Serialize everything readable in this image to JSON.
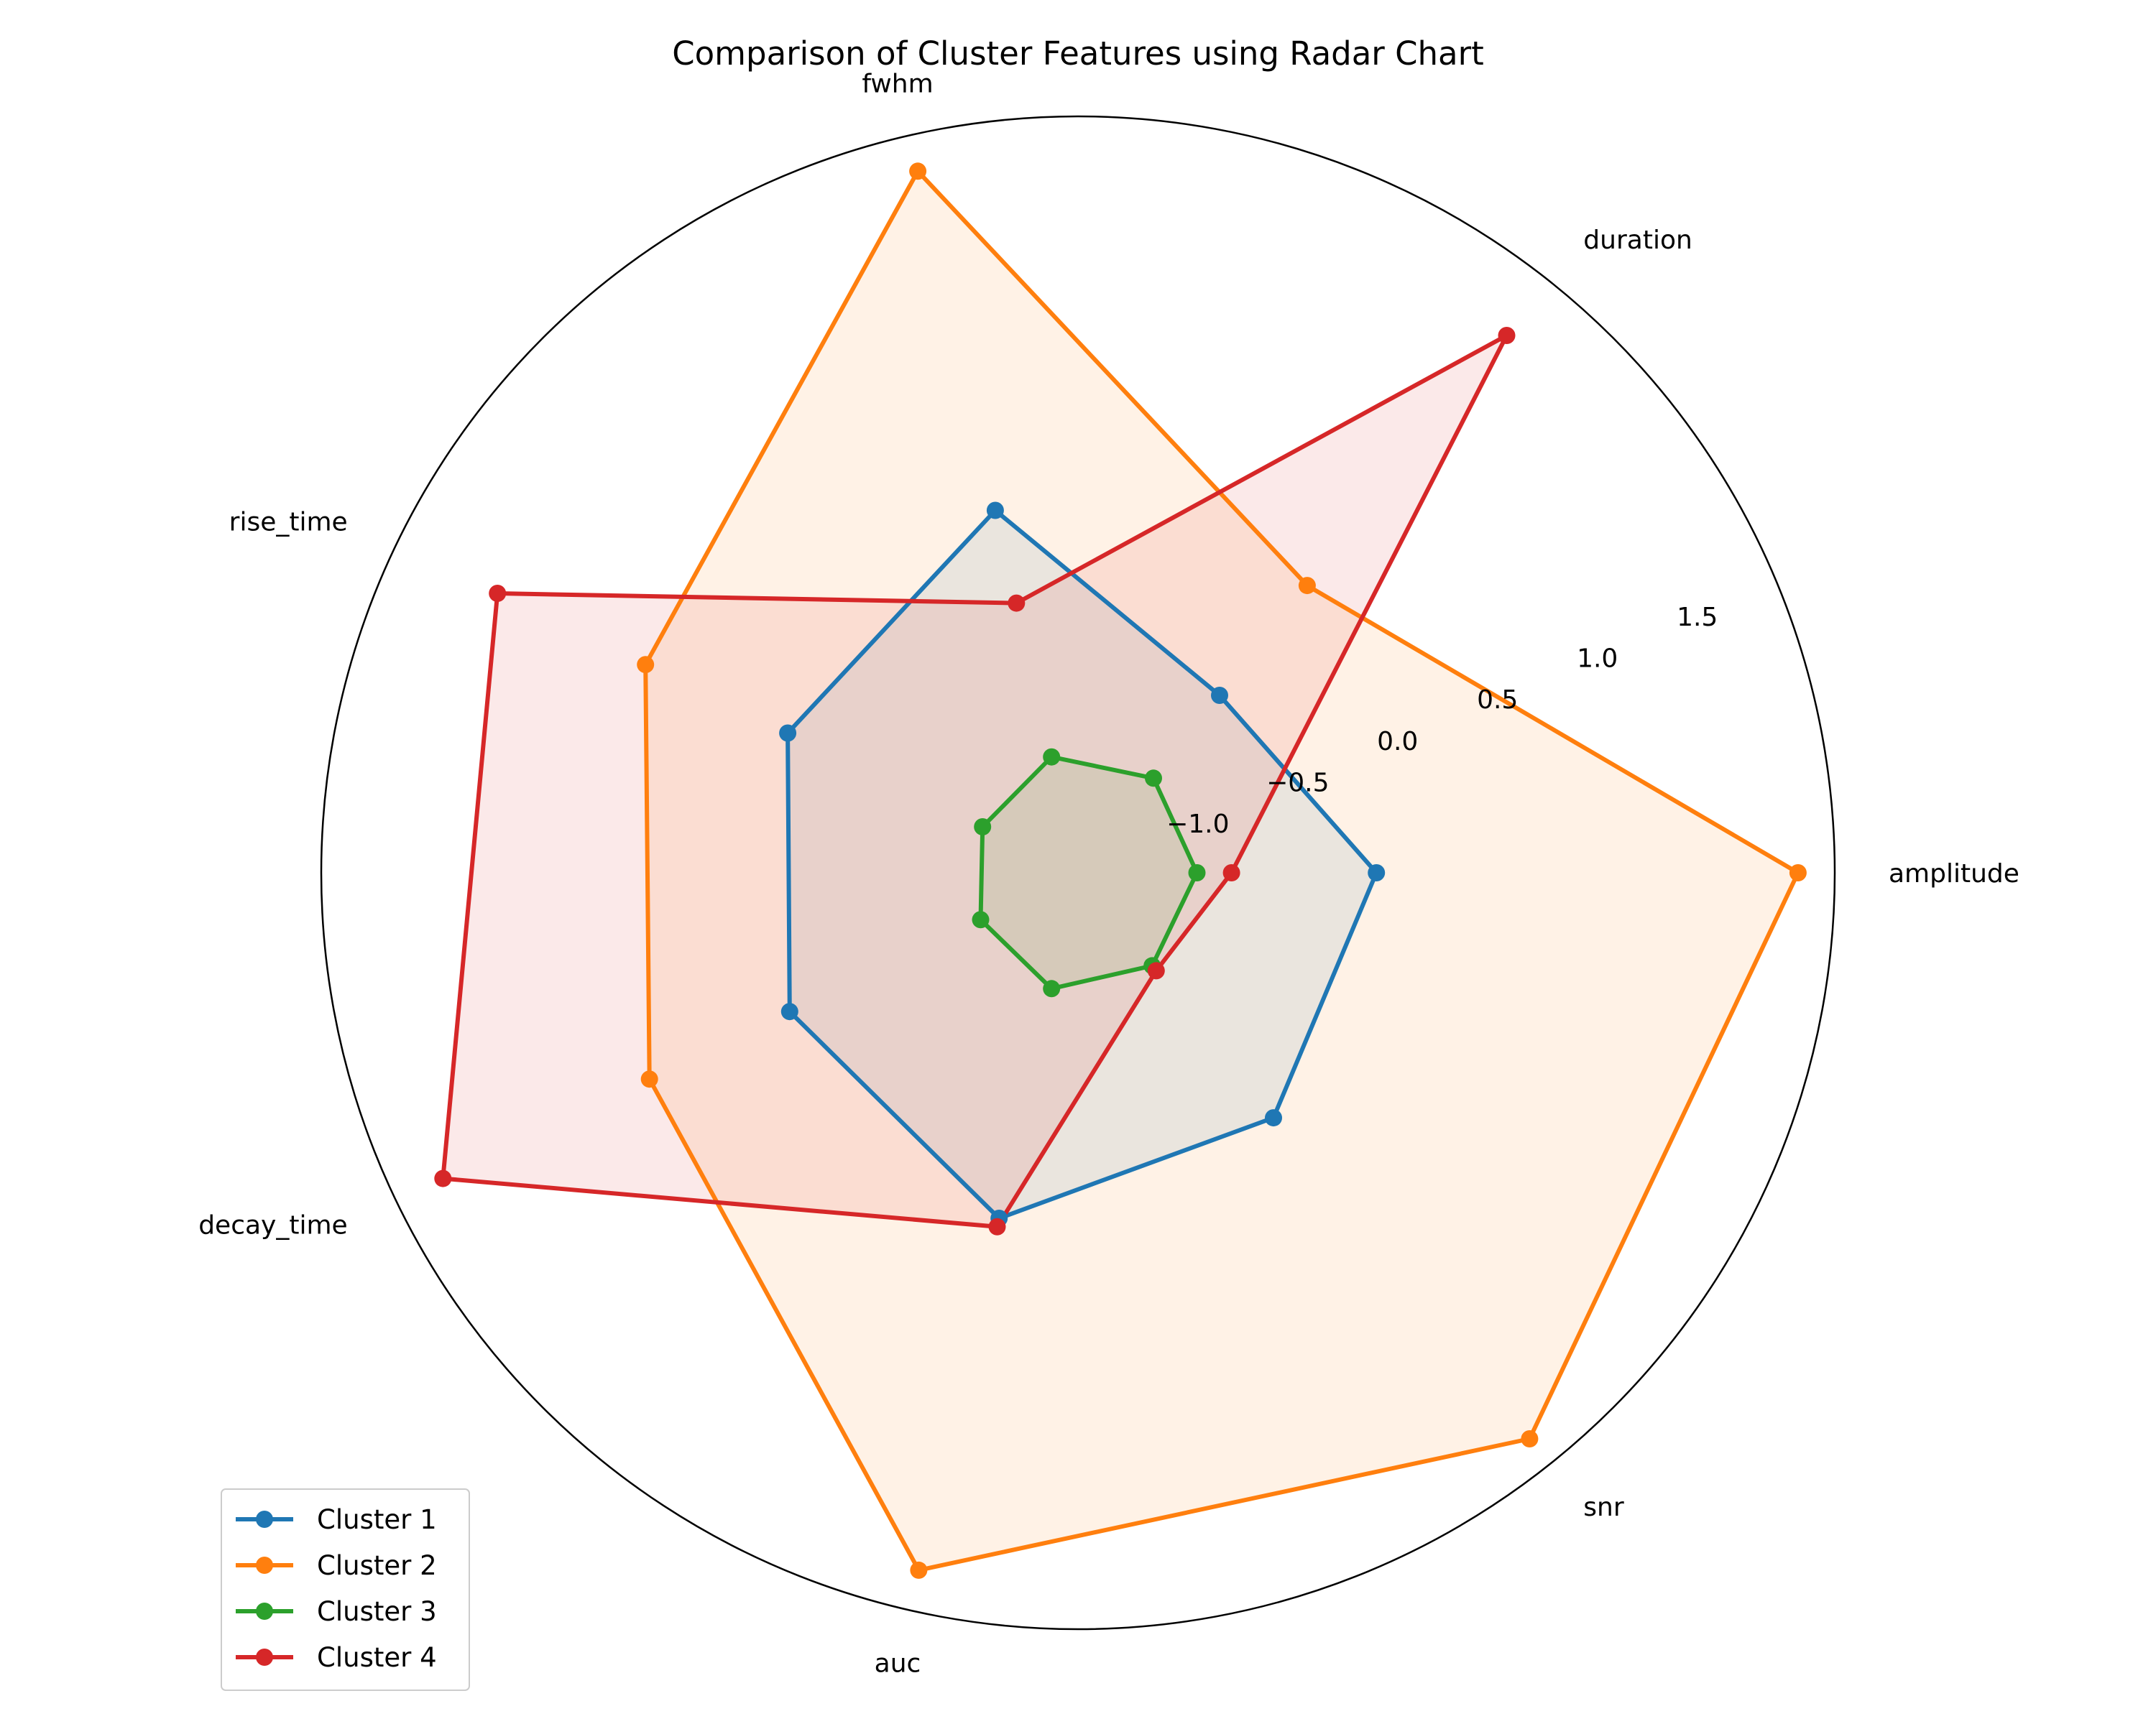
{
  "chart_data": {
    "type": "radar",
    "title": "Comparison of Cluster Features using Radar Chart",
    "categories": [
      "amplitude",
      "duration",
      "fwhm",
      "rise_time",
      "decay_time",
      "auc",
      "snr"
    ],
    "rlim": [
      -1.6,
      1.9
    ],
    "radial_ticks": [
      -1.0,
      -0.5,
      0.0,
      0.5,
      1.0,
      1.5
    ],
    "radial_tick_labels": [
      "−1.0",
      "−0.5",
      "0.0",
      "0.5",
      "1.0",
      "1.5"
    ],
    "grid": false,
    "legend_position": "lower-left",
    "series": [
      {
        "name": "Cluster 1",
        "color": "#1f77b4",
        "values": [
          -0.22,
          -0.55,
          0.12,
          -0.11,
          -0.12,
          0.04,
          -0.15
        ]
      },
      {
        "name": "Cluster 2",
        "color": "#ff7f0e",
        "values": [
          1.73,
          0.1,
          1.73,
          0.62,
          0.6,
          1.71,
          1.75
        ]
      },
      {
        "name": "Cluster 3",
        "color": "#2ca02c",
        "values": [
          -1.05,
          -1.04,
          -1.05,
          -1.11,
          -1.1,
          -1.05,
          -1.05
        ]
      },
      {
        "name": "Cluster 4",
        "color": "#d62728",
        "values": [
          -0.89,
          1.58,
          -0.32,
          1.38,
          1.66,
          0.08,
          -1.02
        ]
      }
    ]
  }
}
